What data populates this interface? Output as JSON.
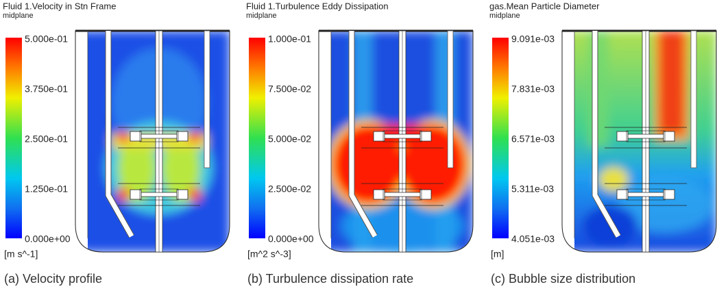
{
  "panels": [
    {
      "title": "Fluid 1.Velocity in Stn Frame",
      "subtitle": "midplane",
      "ticks": [
        "5.000e-01",
        "3.750e-01",
        "2.500e-01",
        "1.250e-01",
        "0.000e+00"
      ],
      "unit": "[m s^-1]",
      "caption": "(a) Velocity profile"
    },
    {
      "title": "Fluid 1.Turbulence Eddy Dissipation",
      "subtitle": "midplane",
      "ticks": [
        "1.000e-01",
        "7.500e-02",
        "5.000e-02",
        "2.500e-02",
        "0.000e+00"
      ],
      "unit": "[m^2 s^-3]",
      "caption": "(b) Turbulence dissipation rate"
    },
    {
      "title": "gas.Mean Particle Diameter",
      "subtitle": "midplane",
      "ticks": [
        "9.091e-03",
        "7.831e-03",
        "6.571e-03",
        "5.311e-03",
        "4.051e-03"
      ],
      "unit": "[m]",
      "caption": "(c) Bubble size distribution"
    }
  ]
}
